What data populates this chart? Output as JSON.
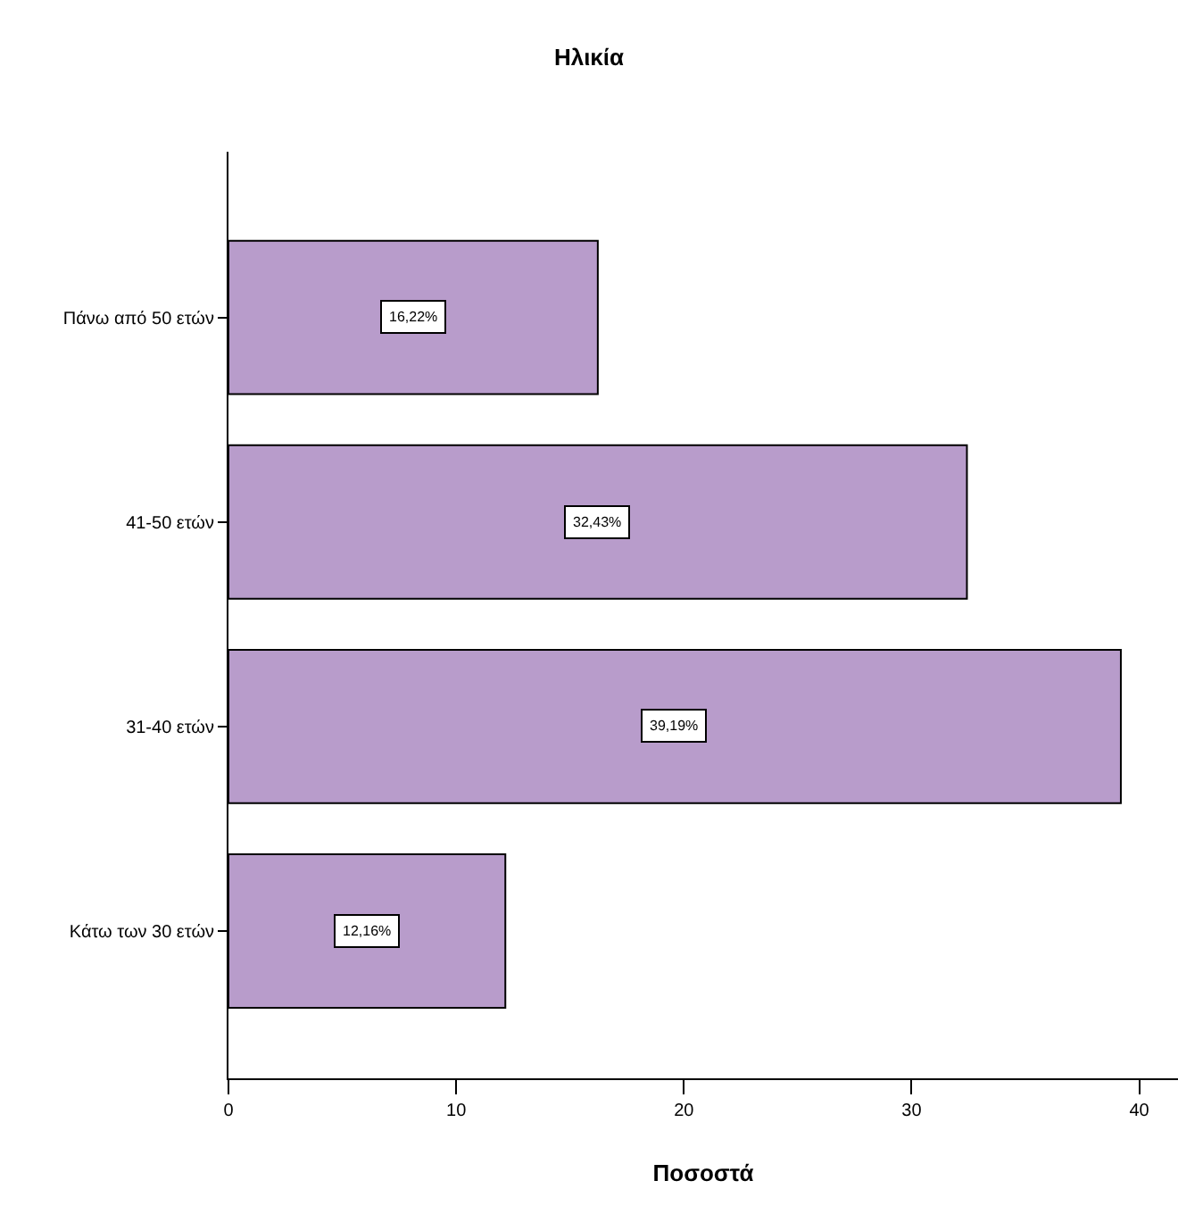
{
  "chart_data": {
    "type": "bar",
    "orientation": "horizontal",
    "title": "Ηλικία",
    "xlabel": "Ποσοστά",
    "categories": [
      "Πάνω από 50 ετών",
      "41-50 ετών",
      "31-40 ετών",
      "Κάτω των 30 ετών"
    ],
    "values": [
      16.22,
      32.43,
      39.19,
      12.16
    ],
    "value_labels": [
      "16,22%",
      "32,43%",
      "39,19%",
      "12,16%"
    ],
    "color": "#b89ccb",
    "xlim": [
      0,
      41.7
    ],
    "xticks": [
      0,
      10,
      20,
      30,
      40
    ],
    "grid": false
  }
}
